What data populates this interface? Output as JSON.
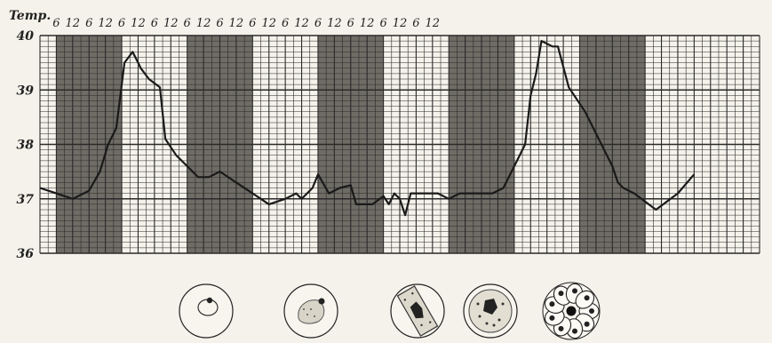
{
  "chart_data": {
    "type": "line",
    "title": "Temp.",
    "x_tick_labels": [
      "6",
      "12",
      "6",
      "12",
      "6",
      "12",
      "6",
      "12",
      "6",
      "12",
      "6",
      "12",
      "6",
      "12",
      "6",
      "12",
      "6",
      "12",
      "6",
      "12",
      "6",
      "12",
      "6",
      "12"
    ],
    "y_tick_labels": [
      "40",
      "39",
      "38",
      "37",
      "36"
    ],
    "ylim": [
      36,
      40
    ],
    "xlim": [
      0,
      264
    ],
    "x_unit": "hours",
    "shaded_bands": [
      [
        6,
        30
      ],
      [
        54,
        78
      ],
      [
        102,
        126
      ],
      [
        150,
        174
      ],
      [
        198,
        222
      ]
    ],
    "grid": true,
    "series": [
      {
        "x": [
          0,
          6,
          12,
          18,
          22,
          25,
          28,
          31,
          34,
          35,
          36,
          37,
          40,
          44,
          46,
          50,
          54,
          58,
          62,
          66,
          72,
          78,
          84,
          90,
          94,
          96,
          100,
          102,
          106,
          110,
          114,
          116,
          118,
          122,
          126,
          128,
          130,
          132,
          134,
          136,
          140,
          146,
          150,
          154,
          158,
          162,
          166,
          170,
          174,
          178,
          180,
          182,
          184,
          186,
          188,
          190,
          194,
          200,
          204,
          206,
          210,
          212,
          214,
          218,
          226,
          234,
          240
        ],
        "y": [
          37.2,
          37.1,
          37.0,
          37.15,
          37.5,
          38.0,
          38.3,
          39.5,
          39.7,
          39.6,
          39.5,
          39.4,
          39.2,
          39.05,
          38.1,
          37.8,
          37.6,
          37.4,
          37.4,
          37.5,
          37.3,
          37.1,
          36.9,
          37.0,
          37.1,
          37.0,
          37.2,
          37.45,
          37.1,
          37.2,
          37.25,
          36.9,
          36.9,
          36.9,
          37.05,
          36.9,
          37.1,
          37.0,
          36.7,
          37.1,
          37.1,
          37.1,
          37.0,
          37.1,
          37.1,
          37.1,
          37.1,
          37.2,
          37.6,
          38.0,
          38.9,
          39.3,
          39.9,
          39.85,
          39.8,
          39.8,
          39.05,
          38.6,
          38.2,
          38.0,
          37.6,
          37.3,
          37.2,
          37.1,
          36.8,
          37.1,
          37.45
        ]
      }
    ]
  },
  "parasite_stages": [
    {
      "icon": "ring-stage-cell-icon"
    },
    {
      "icon": "young-trophozoite-cell-icon"
    },
    {
      "icon": "banded-trophozoite-cell-icon"
    },
    {
      "icon": "schizont-cell-icon"
    },
    {
      "icon": "rosette-merozoites-icon"
    }
  ]
}
